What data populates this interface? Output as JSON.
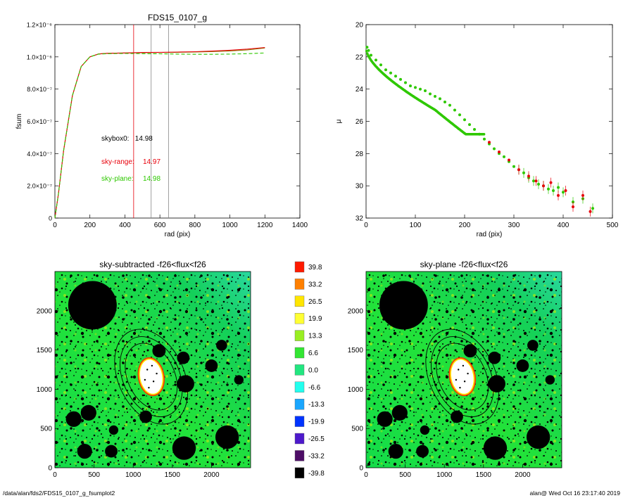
{
  "colors": {
    "black": "#000000",
    "red": "#e8000b",
    "green": "#2ec800",
    "olive": "#8a7a00",
    "grey": "#888888"
  },
  "footer": {
    "left": "/data/alan/fds2/FDS15_0107_g_fsumplot2",
    "right": "alan@  Wed Oct 16 23:17:40 2019"
  },
  "chart_data": [
    {
      "type": "line",
      "title": "FDS15_0107_g",
      "xlabel": "rad (pix)",
      "ylabel": "fsum",
      "xlim": [
        0,
        1400
      ],
      "ylim": [
        0,
        1.2e-06
      ],
      "xticks": [
        "0",
        "200",
        "400",
        "600",
        "800",
        "1000",
        "1200",
        "1400"
      ],
      "yticks": [
        "0",
        "2.0×10⁻⁷",
        "4.0×10⁻⁷",
        "6.0×10⁻⁷",
        "8.0×10⁻⁷",
        "1.0×10⁻⁶",
        "1.2×10⁻⁶"
      ],
      "vlines": [
        {
          "x": 450,
          "color": "red"
        },
        {
          "x": 550,
          "color": "grey"
        },
        {
          "x": 650,
          "color": "grey"
        }
      ],
      "annotations": [
        {
          "label": "skybox0:",
          "value": "14.98",
          "color": "black"
        },
        {
          "label": "sky-range:",
          "value": "14.97",
          "color": "red"
        },
        {
          "label": "sky-plane:",
          "value": "14.98",
          "color": "green"
        }
      ],
      "series": [
        {
          "color": "black",
          "style": "solid",
          "x": [
            0,
            20,
            50,
            100,
            150,
            200,
            250,
            300,
            400,
            500,
            600,
            700,
            800,
            900,
            1000,
            1100,
            1200
          ],
          "y": [
            0,
            1.5e-07,
            4.2e-07,
            7.6e-07,
            9.4e-07,
            1e-06,
            1.018e-06,
            1.022e-06,
            1.024e-06,
            1.026e-06,
            1.027e-06,
            1.028e-06,
            1.03e-06,
            1.033e-06,
            1.037e-06,
            1.043e-06,
            1.055e-06
          ]
        },
        {
          "color": "red",
          "style": "solid",
          "x": [
            0,
            20,
            50,
            100,
            150,
            200,
            250,
            300,
            400,
            500,
            600,
            700,
            800,
            900,
            1000,
            1100,
            1200
          ],
          "y": [
            0,
            1.5e-07,
            4.2e-07,
            7.6e-07,
            9.4e-07,
            1e-06,
            1.018e-06,
            1.022e-06,
            1.024e-06,
            1.027e-06,
            1.028e-06,
            1.03e-06,
            1.032e-06,
            1.036e-06,
            1.041e-06,
            1.048e-06,
            1.058e-06
          ]
        },
        {
          "color": "green",
          "style": "dashed",
          "x": [
            0,
            20,
            50,
            100,
            150,
            200,
            250,
            300,
            400,
            500,
            600,
            700,
            800,
            900,
            1000,
            1100,
            1200
          ],
          "y": [
            0,
            1.5e-07,
            4.2e-07,
            7.6e-07,
            9.4e-07,
            1e-06,
            1.017e-06,
            1.02e-06,
            1.021e-06,
            1.02e-06,
            1.019e-06,
            1.017e-06,
            1.016e-06,
            1.016e-06,
            1.017e-06,
            1.02e-06,
            1.024e-06
          ]
        }
      ]
    },
    {
      "type": "scatter",
      "title": "",
      "xlabel": "rad (pix)",
      "ylabel": "μ",
      "xlim": [
        0,
        500
      ],
      "ylim": [
        32,
        20
      ],
      "xticks": [
        "0",
        "100",
        "200",
        "300",
        "400",
        "500"
      ],
      "yticks": [
        "20",
        "22",
        "24",
        "26",
        "28",
        "30",
        "32"
      ],
      "series": [
        {
          "color": "green",
          "x": [
            2,
            5,
            10,
            20,
            30,
            40,
            50,
            60,
            70,
            80,
            90,
            100,
            110,
            120,
            130,
            140,
            150,
            160,
            170,
            180,
            190,
            200,
            210,
            220,
            230,
            240,
            250,
            260,
            270,
            280,
            290,
            300,
            310,
            320,
            330,
            340,
            350,
            360,
            370,
            380,
            390,
            400,
            420,
            440,
            460
          ],
          "y": [
            21.4,
            21.6,
            21.9,
            22.2,
            22.5,
            22.8,
            23.0,
            23.2,
            23.4,
            23.6,
            23.8,
            23.9,
            24.0,
            24.1,
            24.3,
            24.45,
            24.6,
            24.8,
            25.0,
            25.3,
            25.6,
            25.9,
            26.2,
            26.5,
            26.8,
            27.1,
            27.4,
            27.7,
            28.0,
            28.2,
            28.5,
            28.8,
            29.0,
            29.2,
            29.5,
            29.7,
            29.9,
            30.0,
            30.2,
            30.3,
            30.1,
            30.4,
            31.0,
            30.8,
            31.4
          ]
        },
        {
          "color": "red",
          "x": [
            250,
            270,
            290,
            310,
            330,
            345,
            360,
            375,
            390,
            405,
            420,
            440,
            455
          ],
          "y": [
            27.3,
            27.9,
            28.4,
            29.0,
            29.4,
            29.7,
            30.0,
            29.8,
            30.6,
            30.3,
            31.3,
            30.6,
            31.6
          ]
        }
      ]
    },
    {
      "type": "heatmap",
      "title": "sky-subtracted -f26<flux<f26",
      "xlim": [
        0,
        2500
      ],
      "ylim": [
        0,
        2500
      ],
      "xticks": [
        "0",
        "500",
        "1000",
        "1500",
        "2000"
      ],
      "yticks": [
        "0",
        "500",
        "1000",
        "1500",
        "2000"
      ]
    },
    {
      "type": "heatmap",
      "title": "sky-plane -f26<flux<f26",
      "xlim": [
        0,
        2500
      ],
      "ylim": [
        0,
        2500
      ],
      "xticks": [
        "0",
        "500",
        "1000",
        "1500",
        "2000"
      ],
      "yticks": [
        "0",
        "500",
        "1000",
        "1500",
        "2000"
      ]
    }
  ],
  "colorbar": {
    "levels": [
      {
        "label": "39.8",
        "color": "#ff1a00"
      },
      {
        "label": "33.2",
        "color": "#ff8000"
      },
      {
        "label": "26.5",
        "color": "#ffe600"
      },
      {
        "label": "19.9",
        "color": "#ffff33"
      },
      {
        "label": "13.3",
        "color": "#99ee22"
      },
      {
        "label": "6.6",
        "color": "#33e633"
      },
      {
        "label": "0.0",
        "color": "#22e680"
      },
      {
        "label": "-6.6",
        "color": "#22ffee"
      },
      {
        "label": "-13.3",
        "color": "#1aa6ff"
      },
      {
        "label": "-19.9",
        "color": "#0033ff"
      },
      {
        "label": "-26.5",
        "color": "#4d19cc"
      },
      {
        "label": "-33.2",
        "color": "#4d0d66"
      },
      {
        "label": "-39.8",
        "color": "#000000"
      }
    ]
  }
}
